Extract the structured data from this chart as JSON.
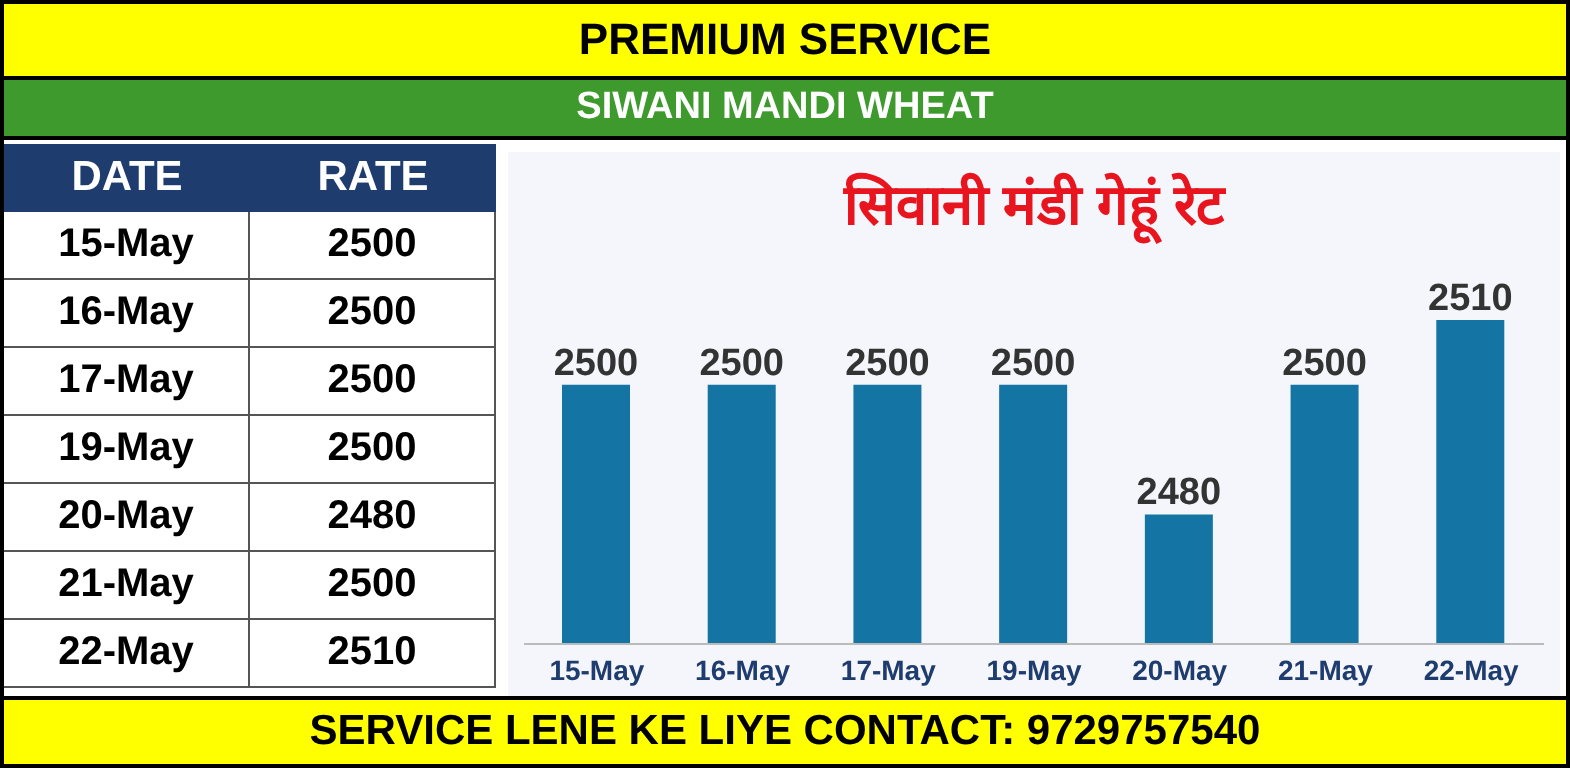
{
  "chart_data": {
    "type": "bar",
    "title": "सिवानी मंडी गेहूं रेट",
    "subtitle": "SIWANI MANDI WHEAT",
    "annotations": [
      "PREMIUM SERVICE",
      "DATE",
      "RATE",
      "SERVICE LENE KE LIYE CONTACT: 9729757540"
    ],
    "categories": [
      "15-May",
      "16-May",
      "17-May",
      "19-May",
      "20-May",
      "21-May",
      "22-May"
    ],
    "values": [
      2500,
      2500,
      2500,
      2500,
      2480,
      2500,
      2510
    ],
    "color": "#1474a4",
    "value_labels": [
      "2500",
      "2500",
      "2500",
      "2500",
      "2480",
      "2500",
      "2510"
    ],
    "ylim": [
      2460,
      2510
    ],
    "tick_labels": "x",
    "grid": false,
    "legend": false
  }
}
